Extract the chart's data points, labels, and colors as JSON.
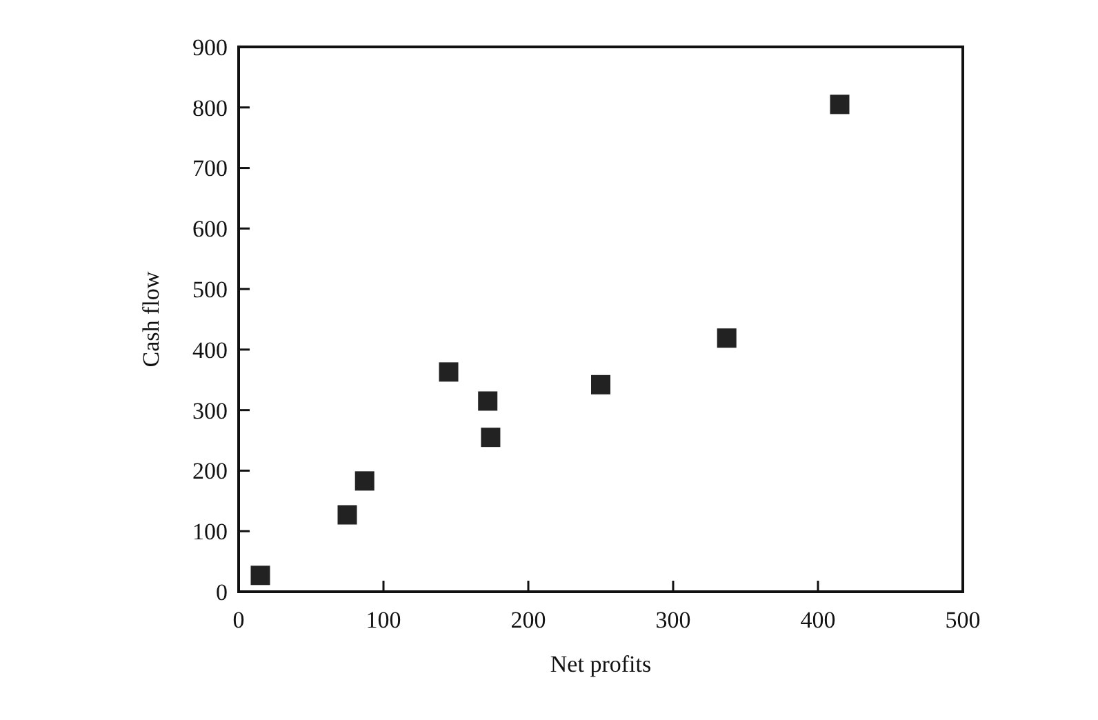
{
  "chart_data": {
    "type": "scatter",
    "xlabel": "Net profits",
    "ylabel": "Cash flow",
    "x": [
      15,
      75,
      87,
      145,
      172,
      174,
      250,
      337,
      415
    ],
    "values": [
      27,
      127,
      183,
      363,
      315,
      255,
      342,
      419,
      805
    ],
    "color": "#222222",
    "marker": "square",
    "xlim": [
      0,
      500
    ],
    "ylim": [
      0,
      900
    ],
    "xticks": [
      0,
      100,
      200,
      300,
      400,
      500
    ],
    "yticks": [
      0,
      100,
      200,
      300,
      400,
      500,
      600,
      700,
      800,
      900
    ],
    "grid": false
  }
}
